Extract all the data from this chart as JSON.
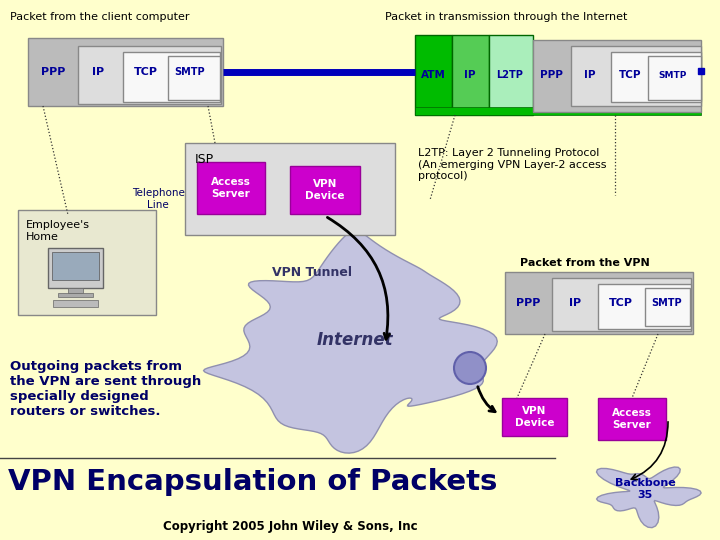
{
  "bg_color": "#ffffcc",
  "title_left": "Packet from the client computer",
  "title_right": "Packet in transmission through the Internet",
  "green_dark": "#00bb00",
  "green_mid": "#55cc55",
  "green_light": "#aaeebb",
  "gray_dark": "#aaaaaa",
  "gray_mid": "#bbbbbb",
  "gray_light": "#dddddd",
  "white": "#f8f8f8",
  "dark_blue": "#000099",
  "magenta": "#cc00cc",
  "blue_line": "#0000bb",
  "isp_label": "ISP",
  "vpn_tunnel_label": "VPN Tunnel",
  "internet_label": "Internet",
  "telephone_label": "Telephone\nLine",
  "employees_label": "Employee's\nHome",
  "access_server_label": "Access\nServer",
  "vpn_device_label": "VPN\nDevice",
  "l2tp_desc": "L2TP: Layer 2 Tunneling Protocol\n(An emerging VPN Layer-2 access\nprotocol)",
  "outgoing_text": "Outgoing packets from\nthe VPN are sent through\nspecially designed\nrouters or switches.",
  "packet_vpn_label": "Packet from the VPN",
  "big_title": "VPN Encapsulation of Packets",
  "copyright": "Copyright 2005 John Wiley & Sons, Inc",
  "backbone_label": "Backbone\n35"
}
